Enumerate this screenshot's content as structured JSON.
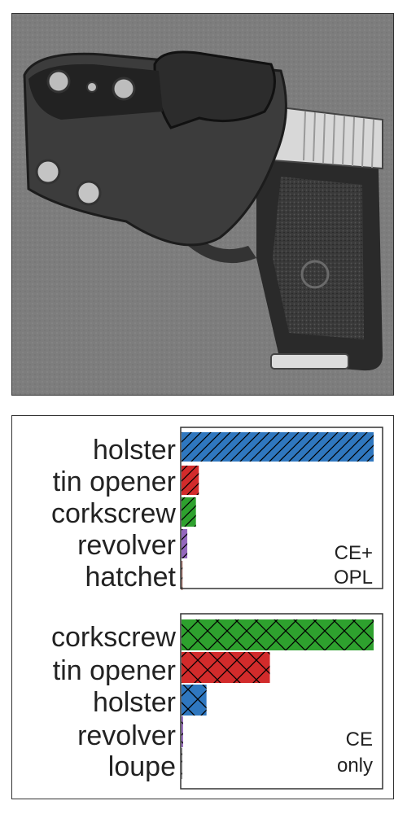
{
  "image": {
    "subject": "holster-pistol-photo"
  },
  "colors": {
    "holster": "#2f77bf",
    "tin opener": "#d22b2b",
    "corkscrew": "#2ea12e",
    "revolver": "#9467bd",
    "hatchet": "#8c564b",
    "loupe": "#7f7f7f"
  },
  "chart_data": [
    {
      "type": "bar",
      "orientation": "horizontal",
      "hatch": "diagonal",
      "categories": [
        "holster",
        "tin opener",
        "corkscrew",
        "revolver",
        "hatchet"
      ],
      "values": [
        1.0,
        0.09,
        0.075,
        0.03,
        0.005
      ],
      "xlim": [
        0,
        1.0
      ],
      "legend_lines": [
        "CE+",
        "OPL"
      ]
    },
    {
      "type": "bar",
      "orientation": "horizontal",
      "hatch": "cross",
      "categories": [
        "corkscrew",
        "tin opener",
        "holster",
        "revolver",
        "loupe"
      ],
      "values": [
        1.0,
        0.46,
        0.13,
        0.008,
        0.004
      ],
      "xlim": [
        0,
        1.0
      ],
      "legend_lines": [
        "CE",
        "only"
      ]
    }
  ]
}
